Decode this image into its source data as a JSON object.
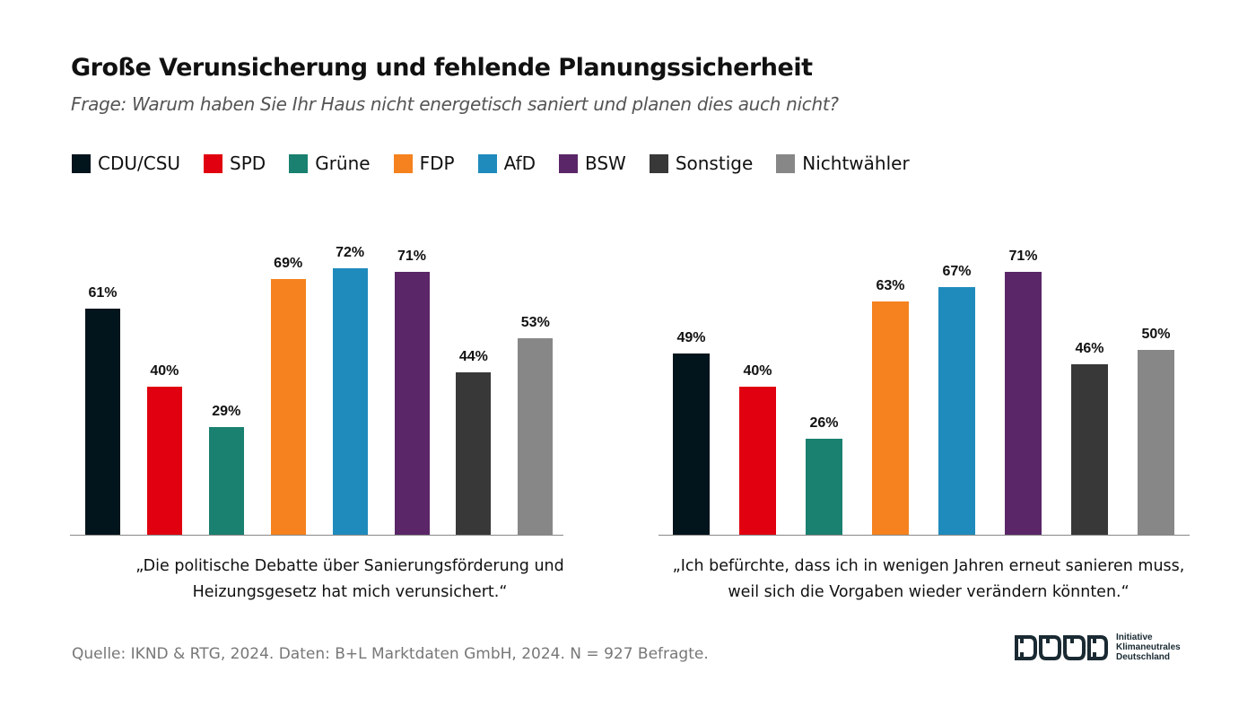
{
  "title": "Große Verunsicherung und fehlende Planungssicherheit",
  "subtitle": "Frage: Warum haben Sie Ihr Haus nicht energetisch saniert und planen dies auch nicht?",
  "legend": [
    {
      "label": "CDU/CSU",
      "color": "#02141c"
    },
    {
      "label": "SPD",
      "color": "#e0000f"
    },
    {
      "label": "Grüne",
      "color": "#1a8070"
    },
    {
      "label": "FDP",
      "color": "#f5821f"
    },
    {
      "label": "AfD",
      "color": "#1f8bbd"
    },
    {
      "label": "BSW",
      "color": "#5a2667"
    },
    {
      "label": "Sonstige",
      "color": "#383838"
    },
    {
      "label": "Nichtwähler",
      "color": "#878787"
    }
  ],
  "chart_data": [
    {
      "type": "bar",
      "categories": [
        "CDU/CSU",
        "SPD",
        "Grüne",
        "FDP",
        "AfD",
        "BSW",
        "Sonstige",
        "Nichtwähler"
      ],
      "values": [
        61,
        40,
        29,
        69,
        72,
        71,
        44,
        53
      ],
      "labels": [
        "61%",
        "40%",
        "29%",
        "69%",
        "72%",
        "71%",
        "44%",
        "53%"
      ],
      "caption": "„Die politische Debatte über Sanierungsförderung und Heizungsgesetz hat mich verunsichert.“",
      "ylim": [
        0,
        100
      ]
    },
    {
      "type": "bar",
      "categories": [
        "CDU/CSU",
        "SPD",
        "Grüne",
        "FDP",
        "AfD",
        "BSW",
        "Sonstige",
        "Nichtwähler"
      ],
      "values": [
        49,
        40,
        26,
        63,
        67,
        71,
        46,
        50
      ],
      "labels": [
        "49%",
        "40%",
        "26%",
        "63%",
        "67%",
        "71%",
        "46%",
        "50%"
      ],
      "caption": "„Ich befürchte, dass ich in wenigen Jahren erneut sanieren muss, weil sich die Vorgaben wieder verändern könnten.“",
      "ylim": [
        0,
        100
      ]
    }
  ],
  "source": "Quelle: IKND & RTG, 2024. Daten: B+L  Marktdaten GmbH, 2024. N = 927 Befragte.",
  "logo": {
    "mark": "IKND",
    "text": [
      "Initiative",
      "Klimaneutrales",
      "Deutschland"
    ]
  }
}
